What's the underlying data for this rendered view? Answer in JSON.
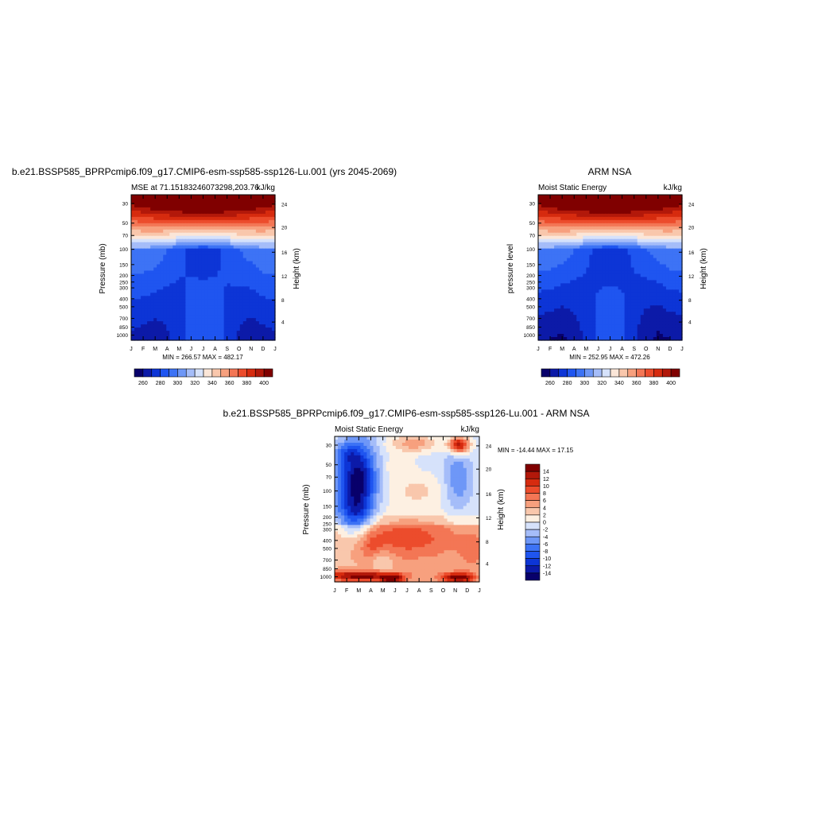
{
  "chart_data": [
    {
      "type": "heatmap",
      "title": "b.e21.BSSP585_BPRPcmip6.f09_g17.CMIP6-esm-ssp585-ssp126-Lu.001 (yrs 2045-2069)",
      "left_label": "MSE at 71.15183246073298,203.76",
      "right_label": "kJ/kg",
      "ylabel": "Pressure (mb)",
      "ylabel_right": "Height (km)",
      "stats": "MIN = 266.57 MAX = 482.17",
      "x_ticks": [
        "J",
        "F",
        "M",
        "A",
        "M",
        "J",
        "J",
        "A",
        "S",
        "O",
        "N",
        "D",
        "J"
      ],
      "y_ticks": [
        "30",
        "50",
        "70",
        "100",
        "150",
        "200",
        "250",
        "300",
        "400",
        "500",
        "700",
        "850",
        "1000"
      ],
      "height_ticks": [
        "24",
        "20",
        "16",
        "12",
        "8",
        "4"
      ],
      "colorbar_labels": [
        "260",
        "280",
        "300",
        "320",
        "340",
        "360",
        "380",
        "400"
      ],
      "value_range": [
        250,
        410
      ],
      "upper_surface": [
        300,
        300,
        298,
        290,
        283,
        277,
        274,
        277,
        283,
        290,
        295,
        300,
        300
      ],
      "lower_surface": [
        268,
        266,
        264,
        268,
        274,
        286,
        290,
        286,
        276,
        268,
        264,
        266,
        268
      ]
    },
    {
      "type": "heatmap",
      "title": "ARM NSA",
      "left_label": "Moist Static Energy",
      "right_label": "kJ/kg",
      "ylabel": "pressure level",
      "ylabel_right": "Height (km)",
      "stats": "MIN = 252.95 MAX = 472.26",
      "x_ticks": [
        "J",
        "F",
        "M",
        "A",
        "M",
        "J",
        "J",
        "A",
        "S",
        "O",
        "N",
        "D",
        "J"
      ],
      "y_ticks": [
        "30",
        "50",
        "70",
        "100",
        "150",
        "200",
        "250",
        "300",
        "400",
        "500",
        "700",
        "850",
        "1000"
      ],
      "height_ticks": [
        "24",
        "20",
        "16",
        "12",
        "8",
        "4"
      ],
      "colorbar_labels": [
        "260",
        "280",
        "300",
        "320",
        "340",
        "360",
        "380",
        "400"
      ],
      "value_range": [
        250,
        410
      ],
      "upper_surface": [
        300,
        300,
        297,
        290,
        283,
        276,
        273,
        276,
        283,
        290,
        295,
        300,
        300
      ],
      "lower_surface": [
        262,
        260,
        258,
        264,
        272,
        284,
        288,
        284,
        272,
        262,
        258,
        260,
        262
      ]
    },
    {
      "type": "heatmap",
      "title": "b.e21.BSSP585_BPRPcmip6.f09_g17.CMIP6-esm-ssp585-ssp126-Lu.001 - ARM NSA",
      "left_label": "Moist Static Energy",
      "right_label": "kJ/kg",
      "ylabel": "Pressure (mb)",
      "ylabel_right": "Height (km)",
      "stats": "MIN = -14.44 MAX =  17.15",
      "x_ticks": [
        "J",
        "F",
        "M",
        "A",
        "M",
        "J",
        "J",
        "A",
        "S",
        "O",
        "N",
        "D",
        "J"
      ],
      "y_ticks": [
        "30",
        "50",
        "70",
        "100",
        "150",
        "200",
        "250",
        "300",
        "400",
        "500",
        "700",
        "850",
        "1000"
      ],
      "height_ticks": [
        "24",
        "20",
        "16",
        "12",
        "8",
        "4"
      ],
      "colorbar_labels": [
        "14",
        "12",
        "10",
        "8",
        "6",
        "4",
        "2",
        "0",
        "-2",
        "-4",
        "-6",
        "-8",
        "-10",
        "-12",
        "-14"
      ],
      "value_range": [
        -16,
        16
      ]
    }
  ],
  "colors": {
    "mse_palette": [
      "#08006b",
      "#0c1aa8",
      "#0d35d6",
      "#1f55f0",
      "#3d73f5",
      "#6e97f7",
      "#a5bdf9",
      "#d6e2fb",
      "#fbe6d8",
      "#f9c7ac",
      "#f7a07e",
      "#f37655",
      "#ec4c2c",
      "#d62b0f",
      "#b2180a",
      "#800000"
    ],
    "diff_palette": [
      "#08006b",
      "#0c1aa8",
      "#0d35d6",
      "#1f55f0",
      "#3d73f5",
      "#6e97f7",
      "#a5bdf9",
      "#d6e2fb",
      "#fdf0e2",
      "#f9c7ac",
      "#f7a07e",
      "#f37655",
      "#ec4c2c",
      "#d62b0f",
      "#b2180a",
      "#800000"
    ]
  }
}
